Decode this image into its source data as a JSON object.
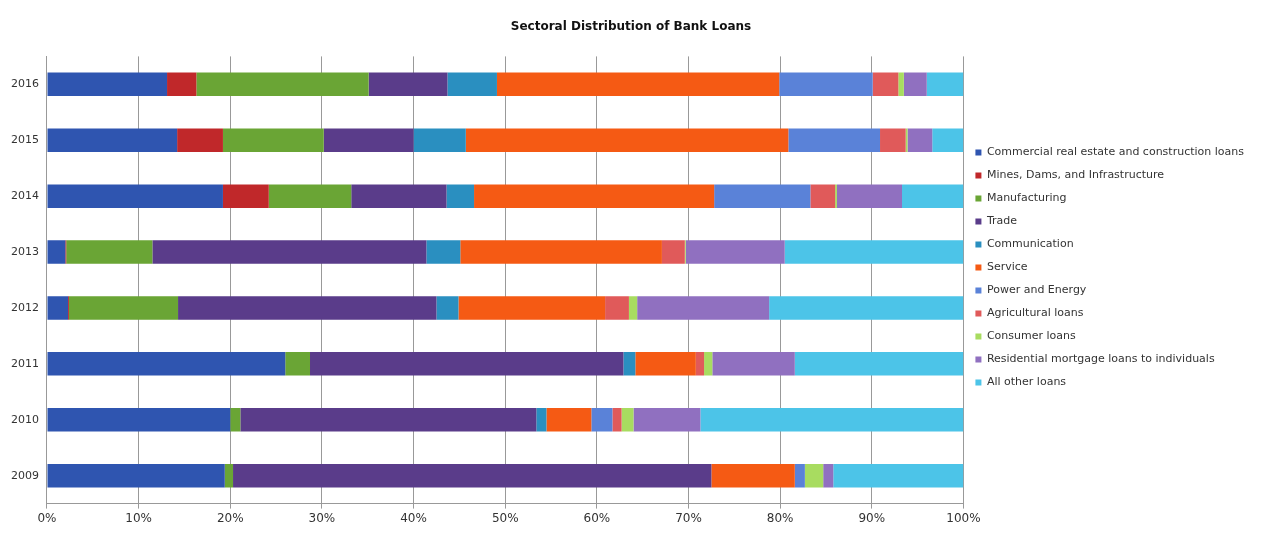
{
  "chart_data": {
    "type": "bar",
    "orientation": "horizontal",
    "stacked": true,
    "title": "Sectoral Distribution of Bank Loans",
    "categories": [
      "2016",
      "2015",
      "2014",
      "2013",
      "2012",
      "2011",
      "2010",
      "2009"
    ],
    "series": [
      {
        "name": "Commercial real estate and construction loans",
        "color": "#2f55b0",
        "values": [
          13.1,
          14.2,
          19.2,
          2.0,
          2.3,
          26.0,
          20.0,
          19.4
        ]
      },
      {
        "name": "Mines, Dams, and Infrastructure",
        "color": "#c0282a",
        "values": [
          3.2,
          5.0,
          5.0,
          0.1,
          0.1,
          0,
          0,
          0
        ]
      },
      {
        "name": "Manufacturing",
        "color": "#6aa535",
        "values": [
          18.8,
          11.0,
          9.0,
          9.4,
          11.9,
          2.7,
          1.1,
          0.9
        ]
      },
      {
        "name": "Trade",
        "color": "#5a3c8a",
        "values": [
          8.6,
          9.8,
          10.4,
          29.9,
          28.2,
          34.2,
          32.3,
          52.2
        ]
      },
      {
        "name": "Communication",
        "color": "#2a8fc0",
        "values": [
          5.4,
          5.7,
          3.0,
          3.7,
          2.4,
          1.3,
          1.1,
          0
        ]
      },
      {
        "name": "Service",
        "color": "#f55a14",
        "values": [
          30.8,
          35.2,
          26.2,
          22.0,
          16.0,
          6.6,
          4.9,
          9.1
        ]
      },
      {
        "name": "Power and Energy",
        "color": "#5a82d8",
        "values": [
          10.2,
          10.0,
          10.5,
          0,
          0,
          0,
          2.3,
          1.1
        ]
      },
      {
        "name": "Agricultural loans",
        "color": "#e05a5a",
        "values": [
          2.8,
          2.8,
          2.7,
          2.5,
          2.6,
          0.9,
          1.0,
          0
        ]
      },
      {
        "name": "Consumer loans",
        "color": "#a8dc60",
        "values": [
          0.6,
          0.2,
          0.2,
          0.1,
          0.9,
          0.9,
          1.3,
          2.0
        ]
      },
      {
        "name": "Residential mortgage loans to individuals",
        "color": "#9070c0",
        "values": [
          2.5,
          2.7,
          7.1,
          10.8,
          14.4,
          9.0,
          7.3,
          1.1
        ]
      },
      {
        "name": "All other loans",
        "color": "#4cc4e8",
        "values": [
          4.0,
          3.4,
          6.7,
          19.5,
          21.2,
          18.4,
          28.7,
          14.2
        ]
      }
    ],
    "xlim": [
      0,
      100
    ],
    "xticks": [
      {
        "value": 0,
        "label": "0%"
      },
      {
        "value": 10,
        "label": "10%"
      },
      {
        "value": 20,
        "label": "20%"
      },
      {
        "value": 30,
        "label": "30%"
      },
      {
        "value": 40,
        "label": "40%"
      },
      {
        "value": 50,
        "label": "50%"
      },
      {
        "value": 60,
        "label": "60%"
      },
      {
        "value": 70,
        "label": "70%"
      },
      {
        "value": 80,
        "label": "80%"
      },
      {
        "value": 90,
        "label": "90%"
      },
      {
        "value": 100,
        "label": "100%"
      }
    ],
    "grid": "x",
    "legend": "right"
  }
}
